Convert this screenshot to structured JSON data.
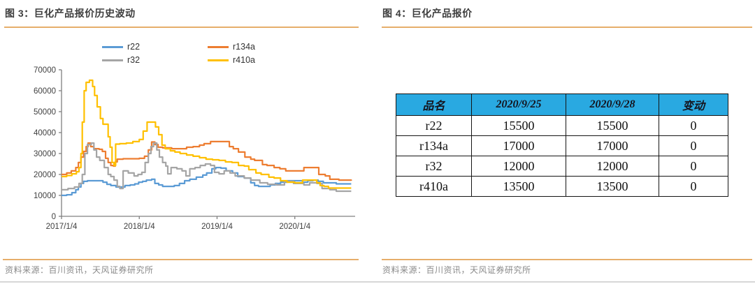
{
  "figure_left": {
    "title": "图 3：巨化产品报价历史波动",
    "source": "资料来源：百川资讯，天风证券研究所"
  },
  "figure_right": {
    "title": "图 4：巨化产品报价",
    "source": "资料来源：百川资讯，天风证券研究所"
  },
  "theme": {
    "rule_color": "#e6ae6a",
    "title_color": "#3d3d3d",
    "source_color": "#8a8a8a",
    "axis_color": "#808080",
    "tick_label_color": "#404040",
    "table_border_color": "#141414",
    "bottom_border_color": "#d7d7d7"
  },
  "chart_data": {
    "type": "line",
    "title": "",
    "xlabel": "",
    "ylabel": "",
    "grid": false,
    "legend_position": "top",
    "ylim": [
      0,
      70000
    ],
    "y_tick_step": 10000,
    "x_unit": "months since 2017/1/4",
    "x_range_months": [
      0,
      45.2
    ],
    "x_tick_months": [
      0,
      12,
      24,
      36
    ],
    "x_tick_labels": [
      "2017/1/4",
      "2018/1/4",
      "2019/1/4",
      "2020/1/4"
    ],
    "series": [
      {
        "name": "r22",
        "color": "#5B9BD5",
        "points": [
          [
            0,
            10000
          ],
          [
            0.8,
            10300
          ],
          [
            1.6,
            11300
          ],
          [
            2.2,
            12700
          ],
          [
            2.6,
            14000
          ],
          [
            3,
            15700
          ],
          [
            3.4,
            16700
          ],
          [
            4,
            17000
          ],
          [
            5.6,
            17000
          ],
          [
            6.4,
            16300
          ],
          [
            7,
            15300
          ],
          [
            7.6,
            14700
          ],
          [
            8.4,
            14000
          ],
          [
            9.2,
            14000
          ],
          [
            9.8,
            14700
          ],
          [
            10.6,
            15000
          ],
          [
            11.3,
            15500
          ],
          [
            11.9,
            16300
          ],
          [
            12.5,
            16700
          ],
          [
            13.1,
            17300
          ],
          [
            13.9,
            17700
          ],
          [
            14.4,
            15700
          ],
          [
            15,
            15000
          ],
          [
            15.6,
            14300
          ],
          [
            16.6,
            14300
          ],
          [
            17.4,
            14700
          ],
          [
            18.2,
            15700
          ],
          [
            19,
            17000
          ],
          [
            19.8,
            17700
          ],
          [
            20.8,
            18700
          ],
          [
            21.8,
            19700
          ],
          [
            22.4,
            20700
          ],
          [
            23.2,
            22700
          ],
          [
            23.8,
            23300
          ],
          [
            24.6,
            23000
          ],
          [
            25.4,
            21700
          ],
          [
            26.4,
            20700
          ],
          [
            27.2,
            19000
          ],
          [
            28.2,
            18300
          ],
          [
            29.2,
            16000
          ],
          [
            29.8,
            14700
          ],
          [
            30.4,
            14300
          ],
          [
            31.6,
            14300
          ],
          [
            32.2,
            15000
          ],
          [
            33,
            15700
          ],
          [
            33.8,
            16300
          ],
          [
            34.8,
            17000
          ],
          [
            36.4,
            17000
          ],
          [
            37.2,
            16300
          ],
          [
            38,
            17000
          ],
          [
            38.8,
            17300
          ],
          [
            39.6,
            16700
          ],
          [
            40.4,
            16000
          ],
          [
            41.6,
            16000
          ],
          [
            42.4,
            15500
          ],
          [
            44.7,
            15500
          ]
        ]
      },
      {
        "name": "r134a",
        "color": "#ED7D31",
        "points": [
          [
            0,
            20000
          ],
          [
            0.8,
            20700
          ],
          [
            1.5,
            21700
          ],
          [
            2.2,
            23300
          ],
          [
            2.6,
            25700
          ],
          [
            3,
            28300
          ],
          [
            3.4,
            31000
          ],
          [
            3.8,
            33300
          ],
          [
            4.1,
            35000
          ],
          [
            4.5,
            33300
          ],
          [
            5,
            32300
          ],
          [
            5.8,
            32000
          ],
          [
            6.3,
            31000
          ],
          [
            6.8,
            27700
          ],
          [
            7.2,
            25700
          ],
          [
            7.6,
            24300
          ],
          [
            8,
            24000
          ],
          [
            8.3,
            26000
          ],
          [
            8.6,
            27300
          ],
          [
            9.5,
            27500
          ],
          [
            11,
            27500
          ],
          [
            12,
            27700
          ],
          [
            12.8,
            28700
          ],
          [
            13.4,
            31700
          ],
          [
            13.9,
            35500
          ],
          [
            14.4,
            34300
          ],
          [
            14.9,
            33000
          ],
          [
            15.6,
            32700
          ],
          [
            17,
            32300
          ],
          [
            18.5,
            32300
          ],
          [
            19.3,
            33000
          ],
          [
            20.3,
            33300
          ],
          [
            21.3,
            34000
          ],
          [
            22,
            34700
          ],
          [
            23,
            35700
          ],
          [
            25.3,
            35700
          ],
          [
            25.9,
            33300
          ],
          [
            26.5,
            32300
          ],
          [
            27.3,
            30700
          ],
          [
            28.3,
            28300
          ],
          [
            29.2,
            27300
          ],
          [
            29.8,
            26700
          ],
          [
            31,
            24700
          ],
          [
            31.7,
            24300
          ],
          [
            32.8,
            23300
          ],
          [
            33.7,
            22700
          ],
          [
            34.6,
            21700
          ],
          [
            36.9,
            21700
          ],
          [
            37.4,
            23300
          ],
          [
            39.2,
            23300
          ],
          [
            39.7,
            20000
          ],
          [
            40.7,
            19300
          ],
          [
            41.4,
            17700
          ],
          [
            42.8,
            17300
          ],
          [
            44.7,
            17000
          ]
        ]
      },
      {
        "name": "r32",
        "color": "#A5A5A5",
        "points": [
          [
            0,
            12700
          ],
          [
            1,
            13300
          ],
          [
            2,
            14000
          ],
          [
            2.7,
            15700
          ],
          [
            3.2,
            20000
          ],
          [
            3.6,
            30000
          ],
          [
            4,
            34300
          ],
          [
            4.6,
            35000
          ],
          [
            5,
            31700
          ],
          [
            5.4,
            28300
          ],
          [
            5.9,
            26700
          ],
          [
            6.6,
            23300
          ],
          [
            7.2,
            20000
          ],
          [
            7.6,
            19000
          ],
          [
            8.1,
            17300
          ],
          [
            8.6,
            14300
          ],
          [
            9,
            13300
          ],
          [
            9.5,
            21700
          ],
          [
            10.3,
            20700
          ],
          [
            11.2,
            19300
          ],
          [
            11.8,
            20000
          ],
          [
            12.4,
            21000
          ],
          [
            12.9,
            25700
          ],
          [
            13.4,
            30000
          ],
          [
            13.8,
            33300
          ],
          [
            14.2,
            35000
          ],
          [
            14.7,
            31700
          ],
          [
            15.1,
            28300
          ],
          [
            15.6,
            25700
          ],
          [
            16.1,
            24000
          ],
          [
            16.4,
            20300
          ],
          [
            16.9,
            23300
          ],
          [
            17.8,
            22700
          ],
          [
            18.6,
            21700
          ],
          [
            19.2,
            19300
          ],
          [
            19.8,
            22700
          ],
          [
            20.6,
            23300
          ],
          [
            21.4,
            24300
          ],
          [
            22.2,
            25000
          ],
          [
            23,
            24300
          ],
          [
            23.6,
            21000
          ],
          [
            24.3,
            20300
          ],
          [
            25.1,
            21700
          ],
          [
            26,
            20700
          ],
          [
            26.8,
            19300
          ],
          [
            28.2,
            18300
          ],
          [
            29.2,
            17300
          ],
          [
            30.6,
            16000
          ],
          [
            31.8,
            15300
          ],
          [
            33.2,
            15000
          ],
          [
            34.4,
            16700
          ],
          [
            35.8,
            15700
          ],
          [
            37.4,
            15000
          ],
          [
            38.3,
            16000
          ],
          [
            39.4,
            15700
          ],
          [
            40.2,
            13300
          ],
          [
            41.4,
            12700
          ],
          [
            42.4,
            12000
          ],
          [
            44.7,
            12000
          ]
        ]
      },
      {
        "name": "r410a",
        "color": "#FFC000",
        "points": [
          [
            0,
            19000
          ],
          [
            0.8,
            19500
          ],
          [
            1.6,
            20300
          ],
          [
            2.3,
            21300
          ],
          [
            2.7,
            23300
          ],
          [
            3,
            30000
          ],
          [
            3.2,
            45000
          ],
          [
            3.5,
            60000
          ],
          [
            3.8,
            64000
          ],
          [
            4.3,
            65000
          ],
          [
            4.8,
            62000
          ],
          [
            5.1,
            57700
          ],
          [
            5.5,
            52300
          ],
          [
            6,
            46700
          ],
          [
            6.4,
            44000
          ],
          [
            6.9,
            44000
          ],
          [
            7.2,
            38000
          ],
          [
            7.5,
            33000
          ],
          [
            7.8,
            25700
          ],
          [
            8.1,
            24300
          ],
          [
            8.35,
            34500
          ],
          [
            9,
            34700
          ],
          [
            10,
            35000
          ],
          [
            11,
            35700
          ],
          [
            12,
            36700
          ],
          [
            12.6,
            40700
          ],
          [
            13.2,
            45000
          ],
          [
            14.2,
            45000
          ],
          [
            14.5,
            42700
          ],
          [
            15,
            39000
          ],
          [
            15.5,
            34000
          ],
          [
            16,
            32300
          ],
          [
            16.8,
            31300
          ],
          [
            17.5,
            30700
          ],
          [
            18.3,
            30000
          ],
          [
            19.3,
            29300
          ],
          [
            20.3,
            28700
          ],
          [
            21.3,
            28000
          ],
          [
            22.3,
            27300
          ],
          [
            23.3,
            27000
          ],
          [
            24.3,
            26700
          ],
          [
            25.3,
            26000
          ],
          [
            26.3,
            25700
          ],
          [
            27.3,
            24300
          ],
          [
            28.2,
            24000
          ],
          [
            28.9,
            22300
          ],
          [
            30,
            20700
          ],
          [
            30.8,
            20000
          ],
          [
            32,
            18700
          ],
          [
            32.8,
            18300
          ],
          [
            33.8,
            17000
          ],
          [
            34.8,
            16300
          ],
          [
            36,
            16000
          ],
          [
            37.2,
            17300
          ],
          [
            38.8,
            17300
          ],
          [
            39.4,
            16000
          ],
          [
            39.9,
            14700
          ],
          [
            40.5,
            14300
          ],
          [
            41.2,
            13500
          ],
          [
            44.7,
            13500
          ]
        ]
      }
    ]
  },
  "table": {
    "header_bg": "#29A9E1",
    "headers": [
      "品名",
      "2020/9/25",
      "2020/9/28",
      "变动"
    ],
    "rows": [
      [
        "r22",
        "15500",
        "15500",
        "0"
      ],
      [
        "r134a",
        "17000",
        "17000",
        "0"
      ],
      [
        "r32",
        "12000",
        "12000",
        "0"
      ],
      [
        "r410a",
        "13500",
        "13500",
        "0"
      ]
    ]
  }
}
